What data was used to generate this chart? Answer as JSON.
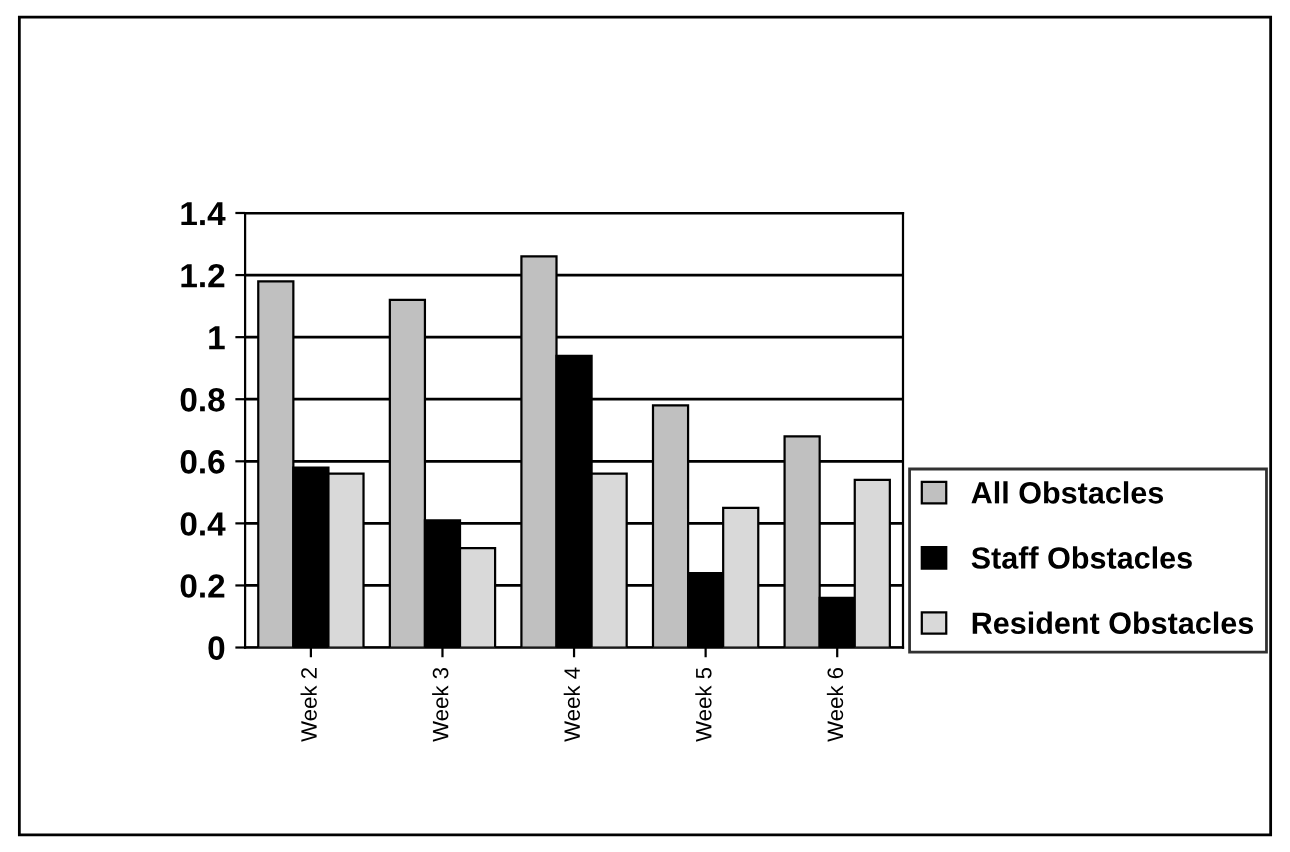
{
  "chart_data": {
    "type": "bar",
    "categories": [
      "Week 2",
      "Week 3",
      "Week 4",
      "Week 5",
      "Week 6"
    ],
    "series": [
      {
        "name": "All Obstacles",
        "color": "#c0c0c0",
        "values": [
          1.18,
          1.12,
          1.26,
          0.78,
          0.68
        ]
      },
      {
        "name": "Staff Obstacles",
        "color": "#000000",
        "values": [
          0.58,
          0.41,
          0.94,
          0.24,
          0.16
        ]
      },
      {
        "name": "Resident Obstacles",
        "color": "#d9d9d9",
        "values": [
          0.56,
          0.32,
          0.56,
          0.45,
          0.54
        ]
      }
    ],
    "ylim": [
      0,
      1.4
    ],
    "yticks": [
      0,
      0.2,
      0.4,
      0.6,
      0.8,
      1,
      1.2,
      1.4
    ],
    "grid": "y",
    "legend": "right"
  }
}
